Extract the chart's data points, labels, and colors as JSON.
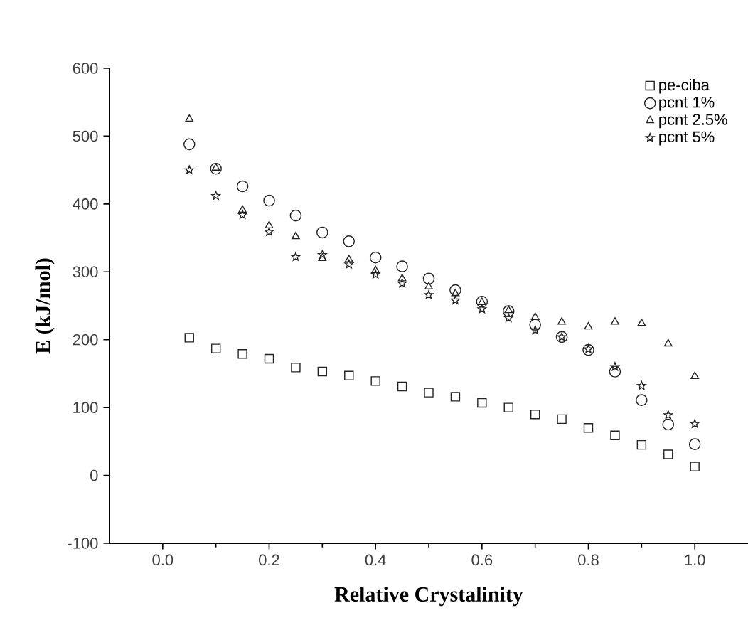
{
  "chart_data": {
    "type": "scatter",
    "xlabel": "Relative Crystalinity",
    "ylabel": "E (kJ/mol)",
    "x": [
      0.05,
      0.1,
      0.15,
      0.2,
      0.25,
      0.3,
      0.35,
      0.4,
      0.45,
      0.5,
      0.55,
      0.6,
      0.65,
      0.7,
      0.75,
      0.8,
      0.85,
      0.9,
      0.95,
      1.0
    ],
    "series": [
      {
        "name": "pe-ciba",
        "color": "#222222",
        "marker": "square",
        "values": [
          203,
          187,
          179,
          172,
          159,
          153,
          147,
          139,
          131,
          122,
          116,
          107,
          100,
          90,
          83,
          70,
          59,
          45,
          31,
          13
        ]
      },
      {
        "name": "pcnt 1%",
        "color": "#222222",
        "marker": "circle",
        "values": [
          488,
          452,
          426,
          405,
          383,
          358,
          345,
          321,
          308,
          290,
          273,
          256,
          242,
          222,
          204,
          185,
          153,
          111,
          75,
          46
        ]
      },
      {
        "name": "pcnt 2.5%",
        "color": "#222222",
        "marker": "triangle",
        "values": [
          525,
          453,
          391,
          368,
          352,
          320,
          318,
          302,
          290,
          278,
          268,
          255,
          243,
          233,
          226,
          219,
          226,
          224,
          194,
          146
        ]
      },
      {
        "name": "pcnt 5%",
        "color": "#222222",
        "marker": "star",
        "values": [
          450,
          412,
          384,
          359,
          322,
          325,
          311,
          296,
          283,
          266,
          258,
          245,
          232,
          214,
          204,
          186,
          160,
          132,
          89,
          76
        ]
      }
    ],
    "xlim": [
      -0.1,
      1.1
    ],
    "xticks": [
      {
        "value": 0,
        "label": "0.0"
      },
      0.2,
      0.4,
      0.6,
      0.8,
      {
        "value": 1,
        "label": "1.0"
      }
    ],
    "ylim": [
      -100,
      600
    ],
    "yticks": [
      -100,
      0,
      100,
      200,
      300,
      400,
      500,
      600
    ],
    "legend": "top right",
    "grid": false
  }
}
